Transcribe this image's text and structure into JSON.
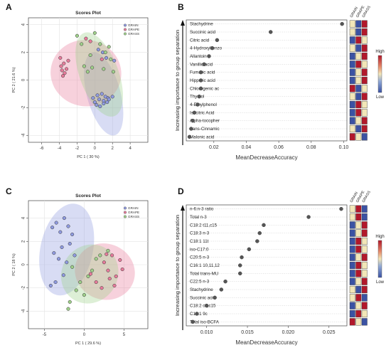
{
  "panels": [
    {
      "letter": "A",
      "chart_data": {
        "type": "scatter",
        "title": "Scores Plot",
        "xlabel": "PC 1 ( 30 %)",
        "ylabel": "PC 2 ( 21.6 %)",
        "xlim": [
          -7.5,
          6
        ],
        "ylim": [
          -4.5,
          4.5
        ],
        "xticks": [
          -6,
          -4,
          -2,
          0,
          2,
          4
        ],
        "yticks": [
          -4,
          -2,
          0,
          2,
          4
        ],
        "grid": true,
        "legend_position": "top-right",
        "series": [
          {
            "name": "GRAIN",
            "color": "#8f9ae0",
            "ellipse": {
              "cx": 1.0,
              "cy": -1.0,
              "rx": 1.9,
              "ry": 3.1,
              "angle": 15
            },
            "x": [
              0.5,
              1.0,
              1.5,
              2.0,
              0.0,
              0.3,
              0.8,
              1.2,
              1.6,
              0.2,
              0.6,
              1.0,
              1.4,
              2.2,
              -0.2,
              0.4,
              0.9,
              1.3
            ],
            "y": [
              -1.4,
              -1.5,
              -1.3,
              -1.2,
              -1.6,
              -1.1,
              -1.0,
              -1.2,
              -1.4,
              -1.8,
              -1.9,
              -1.7,
              -1.6,
              1.4,
              -1.3,
              2.2,
              2.0,
              1.6
            ]
          },
          {
            "name": "GRAPE",
            "color": "#e77b9b",
            "ellipse": {
              "cx": -1.0,
              "cy": 0.5,
              "rx": 4.0,
              "ry": 2.4,
              "angle": -8
            },
            "x": [
              -3.8,
              -3.5,
              -3.2,
              -3.9,
              -3.4,
              -3.6,
              -3.0,
              -1.0,
              -0.5,
              0.8,
              -3.7
            ],
            "y": [
              1.0,
              1.2,
              0.8,
              1.6,
              0.5,
              0.3,
              1.4,
              3.0,
              2.8,
              1.5,
              0.7
            ]
          },
          {
            "name": "GRASS",
            "color": "#9fd08a",
            "ellipse": {
              "cx": 0.5,
              "cy": 0.4,
              "rx": 2.2,
              "ry": 3.2,
              "angle": 20
            },
            "x": [
              -2.0,
              -1.5,
              -1.2,
              -0.8,
              -0.3,
              0.6,
              1.2,
              1.8,
              2.1,
              1.0,
              0.0,
              -0.5,
              1.6
            ],
            "y": [
              3.2,
              2.6,
              1.0,
              0.6,
              0.9,
              2.6,
              2.0,
              1.5,
              0.6,
              0.8,
              3.4,
              1.8,
              2.4
            ]
          }
        ]
      }
    },
    {
      "letter": "B",
      "ylabel_side": "Increasing importance to group separation",
      "chart_data": {
        "type": "scatter",
        "xlabel": "MeanDecreaseAccuracy",
        "xlim": [
          0.003,
          0.102
        ],
        "xticks": [
          0.02,
          0.04,
          0.06,
          0.08,
          0.1
        ],
        "xtick_labels": [
          "0.02",
          "0.04",
          "0.06",
          "0.08",
          "0.10"
        ],
        "categories": [
          "Stachydrine",
          "Succinic acid",
          "Citric acid",
          "4-Hydroxybenzo",
          "Allantoin",
          "Vanillic acid",
          "Fumaric acid",
          "Hippuric acid",
          "Chlorogenic ac",
          "Thymol",
          "4-Ethylphenol",
          "Isocitric Acid",
          "Alpha-tocopher",
          "trans-Cinnamic",
          "Malonic acid"
        ],
        "values": [
          0.099,
          0.055,
          0.022,
          0.019,
          0.017,
          0.014,
          0.012,
          0.012,
          0.012,
          0.011,
          0.01,
          0.008,
          0.007,
          0.006,
          0.005
        ],
        "heatmap_columns": [
          "GRAIN",
          "GRAPE",
          "GRASS"
        ],
        "heatmap": [
          [
            "#f2e6b8",
            "#3b52a3",
            "#b2182b"
          ],
          [
            "#f2e6b8",
            "#3b52a3",
            "#b2182b"
          ],
          [
            "#3b52a3",
            "#b2182b",
            "#f2e6b8"
          ],
          [
            "#f2e6b8",
            "#3b52a3",
            "#b2182b"
          ],
          [
            "#3b52a3",
            "#f2e6b8",
            "#b2182b"
          ],
          [
            "#3b52a3",
            "#b2182b",
            "#f2e6b8"
          ],
          [
            "#3b52a3",
            "#f2e6b8",
            "#b2182b"
          ],
          [
            "#3b52a3",
            "#f2e6b8",
            "#b2182b"
          ],
          [
            "#b2182b",
            "#3b52a3",
            "#f2e6b8"
          ],
          [
            "#f2e6b8",
            "#3b52a3",
            "#b2182b"
          ],
          [
            "#3b52a3",
            "#b2182b",
            "#f2e6b8"
          ],
          [
            "#3b52a3",
            "#b2182b",
            "#f2e6b8"
          ],
          [
            "#3b52a3",
            "#f2e6b8",
            "#b2182b"
          ],
          [
            "#f2e6b8",
            "#3b52a3",
            "#b2182b"
          ],
          [
            "#b2182b",
            "#f2e6b8",
            "#3b52a3"
          ]
        ],
        "colorbar": {
          "high": "High",
          "low": "Low"
        }
      }
    },
    {
      "letter": "C",
      "chart_data": {
        "type": "scatter",
        "title": "Scores Plot",
        "xlabel": "PC 1 ( 29.6 %)",
        "ylabel": "PC 2 ( 18 %)",
        "xlim": [
          -7,
          8
        ],
        "ylim": [
          -5.5,
          5.5
        ],
        "xticks": [
          -5,
          0,
          5
        ],
        "yticks": [
          -4,
          -2,
          0,
          2,
          4
        ],
        "grid": true,
        "legend_position": "top-right",
        "series": [
          {
            "name": "GRAIN",
            "color": "#8f9ae0",
            "ellipse": {
              "cx": -2.2,
              "cy": 1.3,
              "rx": 3.3,
              "ry": 4.0,
              "angle": -12
            },
            "x": [
              -4.0,
              -3.5,
              -3.0,
              -2.5,
              -2.0,
              -1.5,
              -3.8,
              -3.2,
              -2.8,
              -2.2,
              -1.8,
              -4.2,
              -3.6,
              -2.6,
              -1.2
            ],
            "y": [
              3.2,
              3.6,
              2.8,
              4.0,
              3.3,
              2.6,
              1.0,
              0.5,
              1.5,
              0.2,
              1.8,
              -1.8,
              -1.5,
              -0.9,
              0.8
            ]
          },
          {
            "name": "GRAPE",
            "color": "#e77b9b",
            "ellipse": {
              "cx": 2.6,
              "cy": -0.6,
              "rx": 3.8,
              "ry": 2.4,
              "angle": -20
            },
            "x": [
              2.5,
              3.0,
              3.5,
              4.0,
              4.5,
              3.8,
              3.2,
              2.8,
              4.8,
              0.8,
              1.5,
              2.2
            ],
            "y": [
              0.2,
              -0.5,
              0.8,
              -1.0,
              0.4,
              -1.8,
              -1.2,
              0.9,
              -0.4,
              -0.8,
              -1.5,
              -2.0
            ]
          },
          {
            "name": "GRASS",
            "color": "#9fd08a",
            "ellipse": {
              "cx": 0.7,
              "cy": -0.8,
              "rx": 3.5,
              "ry": 2.6,
              "angle": -35
            },
            "x": [
              -1.8,
              -2.0,
              -1.0,
              -0.5,
              0.5,
              1.0,
              1.5,
              -1.5,
              2.0,
              3.0,
              0.0
            ],
            "y": [
              -3.2,
              -3.8,
              -2.2,
              -1.5,
              -1.0,
              -0.5,
              0.5,
              -0.2,
              0.8,
              1.2,
              -2.6
            ]
          }
        ]
      }
    },
    {
      "letter": "D",
      "ylabel_side": "Increasing importance to group separation",
      "chart_data": {
        "type": "scatter",
        "xlabel": "MeanDecreaseAccuracy",
        "xlim": [
          0.0075,
          0.0272
        ],
        "xticks": [
          0.01,
          0.015,
          0.02,
          0.025
        ],
        "xtick_labels": [
          "0.010",
          "0.015",
          "0.020",
          "0.025"
        ],
        "categories": [
          "n-6:n-3 ratio",
          "Total n-3",
          "C18:2 t11,c15",
          "C18:3 n-3",
          "C18:1 11t",
          "iso-C17:0",
          "C20:5 n-3",
          "C16:1 10,11,12",
          "Total trans-MU",
          "C22:5 n-3",
          "Stachydrine",
          "Succinic acid",
          "C18:2 c9,c15",
          "C16:1 9c",
          "Total iso-BCFA"
        ],
        "values": [
          0.0265,
          0.0225,
          0.017,
          0.0165,
          0.0162,
          0.0152,
          0.0143,
          0.0141,
          0.0141,
          0.0123,
          0.0118,
          0.011,
          0.01,
          0.0088,
          0.0083
        ],
        "heatmap_columns": [
          "GRAIN",
          "GRAPE",
          "GRASS"
        ],
        "heatmap": [
          [
            "#f2e6b8",
            "#b2182b",
            "#3b52a3"
          ],
          [
            "#f2e6b8",
            "#b2182b",
            "#3b52a3"
          ],
          [
            "#3b52a3",
            "#f2e6b8",
            "#b2182b"
          ],
          [
            "#3b52a3",
            "#f2e6b8",
            "#b2182b"
          ],
          [
            "#3b52a3",
            "#b2182b",
            "#f2e6b8"
          ],
          [
            "#3b52a3",
            "#b2182b",
            "#f2e6b8"
          ],
          [
            "#3b52a3",
            "#f2e6b8",
            "#b2182b"
          ],
          [
            "#3b52a3",
            "#b2182b",
            "#f2e6b8"
          ],
          [
            "#3b52a3",
            "#b2182b",
            "#f2e6b8"
          ],
          [
            "#3b52a3",
            "#f2e6b8",
            "#b2182b"
          ],
          [
            "#f2e6b8",
            "#3b52a3",
            "#b2182b"
          ],
          [
            "#f2e6b8",
            "#b2182b",
            "#3b52a3"
          ],
          [
            "#3b52a3",
            "#f2e6b8",
            "#b2182b"
          ],
          [
            "#3b52a3",
            "#b2182b",
            "#f2e6b8"
          ],
          [
            "#b2182b",
            "#f2e6b8",
            "#3b52a3"
          ]
        ],
        "colorbar": {
          "high": "High",
          "low": "Low"
        }
      }
    }
  ]
}
